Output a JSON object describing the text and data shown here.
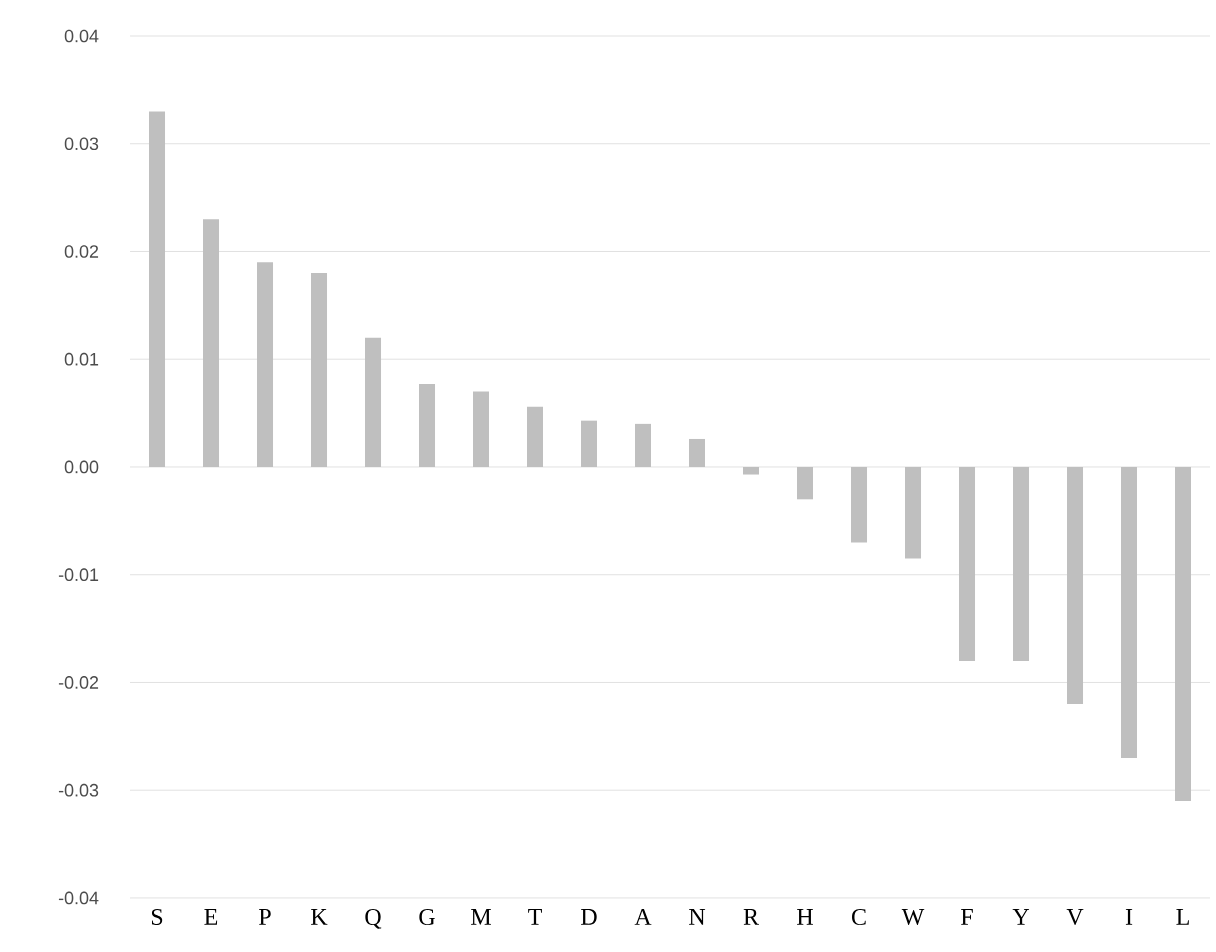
{
  "chart_data": {
    "type": "bar",
    "categories": [
      "S",
      "E",
      "P",
      "K",
      "Q",
      "G",
      "M",
      "T",
      "D",
      "A",
      "N",
      "R",
      "H",
      "C",
      "W",
      "F",
      "Y",
      "V",
      "I",
      "L"
    ],
    "values": [
      0.033,
      0.023,
      0.019,
      0.018,
      0.012,
      0.0077,
      0.007,
      0.0056,
      0.0043,
      0.004,
      0.0026,
      -0.0007,
      -0.003,
      -0.007,
      -0.0085,
      -0.018,
      -0.018,
      -0.022,
      -0.027,
      -0.031
    ],
    "color": "#bfbfbf",
    "ylim": [
      -0.04,
      0.04
    ],
    "yticks": [
      -0.04,
      -0.03,
      -0.02,
      -0.01,
      {
        "value": 0,
        "label": "0.00"
      },
      0.01,
      0.02,
      0.03,
      0.04
    ],
    "grid": "y"
  }
}
